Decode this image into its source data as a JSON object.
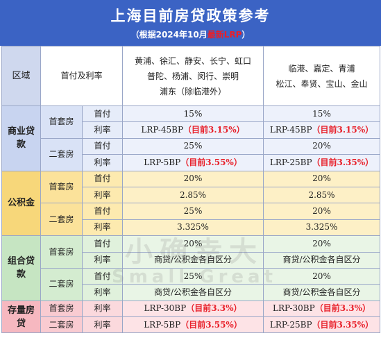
{
  "header": {
    "title": "上海目前房贷政策参考",
    "subtitle_pre": "（根据2024年10月",
    "subtitle_hl": "最新LRP",
    "subtitle_post": "）"
  },
  "columns": {
    "area": "区域",
    "down_rate": "首付及利率",
    "district_a_line1": "黄浦、徐汇、静安、长宁、虹口",
    "district_a_line2": "普陀、杨浦、闵行、崇明",
    "district_a_line3": "浦东（除临港外）",
    "district_b_line1": "临港、嘉定、青浦",
    "district_b_line2": "松江、奉贤、宝山、金山"
  },
  "groups": [
    {
      "category": "商业贷款",
      "subs": [
        {
          "name": "首套房",
          "rows": [
            {
              "label": "首付",
              "a": "15%",
              "a_red": "",
              "b": "15%",
              "b_red": ""
            },
            {
              "label": "利率",
              "a": "LRP-45BP",
              "a_red": "（目前3.15%）",
              "b": "LRP-45BP",
              "b_red": "（目前3.15%）"
            }
          ]
        },
        {
          "name": "二套房",
          "rows": [
            {
              "label": "首付",
              "a": "25%",
              "a_red": "",
              "b": "20%",
              "b_red": ""
            },
            {
              "label": "利率",
              "a": "LRP-5BP",
              "a_red": "（目前3.55%）",
              "b": "LRP-25BP",
              "b_red": "（目前3.35%）"
            }
          ]
        }
      ]
    },
    {
      "category": "公积金",
      "subs": [
        {
          "name": "首套房",
          "rows": [
            {
              "label": "首付",
              "a": "20%",
              "a_red": "",
              "b": "20%",
              "b_red": ""
            },
            {
              "label": "利率",
              "a": "2.85%",
              "a_red": "",
              "b": "2.85%",
              "b_red": ""
            }
          ]
        },
        {
          "name": "二套房",
          "rows": [
            {
              "label": "首付",
              "a": "25%",
              "a_red": "",
              "b": "20%",
              "b_red": ""
            },
            {
              "label": "利率",
              "a": "3.325%",
              "a_red": "",
              "b": "3.325%",
              "b_red": ""
            }
          ]
        }
      ]
    },
    {
      "category": "组合贷款",
      "subs": [
        {
          "name": "首套房",
          "rows": [
            {
              "label": "首付",
              "a": "20%",
              "a_red": "",
              "b": "20%",
              "b_red": ""
            },
            {
              "label": "利率",
              "a": "商贷/公积金各自区分",
              "a_red": "",
              "b": "商贷/公积金各自区分",
              "b_red": ""
            }
          ]
        },
        {
          "name": "二套房",
          "rows": [
            {
              "label": "首付",
              "a": "25%",
              "a_red": "",
              "b": "20%",
              "b_red": ""
            },
            {
              "label": "利率",
              "a": "商贷/公积金各自区分",
              "a_red": "",
              "b": "商贷/公积金各自区分",
              "b_red": ""
            }
          ]
        }
      ]
    },
    {
      "category": "存量房贷",
      "subs": [
        {
          "name": "首套房",
          "rows": [
            {
              "label": "利率",
              "a": "LRP-30BP",
              "a_red": "（目前3.3%）",
              "b": "LRP-30BP",
              "b_red": "（目前3.3%）"
            }
          ]
        },
        {
          "name": "二套房",
          "rows": [
            {
              "label": "利率",
              "a": "LRP-5BP",
              "a_red": "（目前3.55%）",
              "b": "LRP-25BP",
              "b_red": "（目前3.35%）"
            }
          ]
        }
      ]
    }
  ],
  "watermark": {
    "cn": "小确幸大",
    "en": "Small Great"
  }
}
